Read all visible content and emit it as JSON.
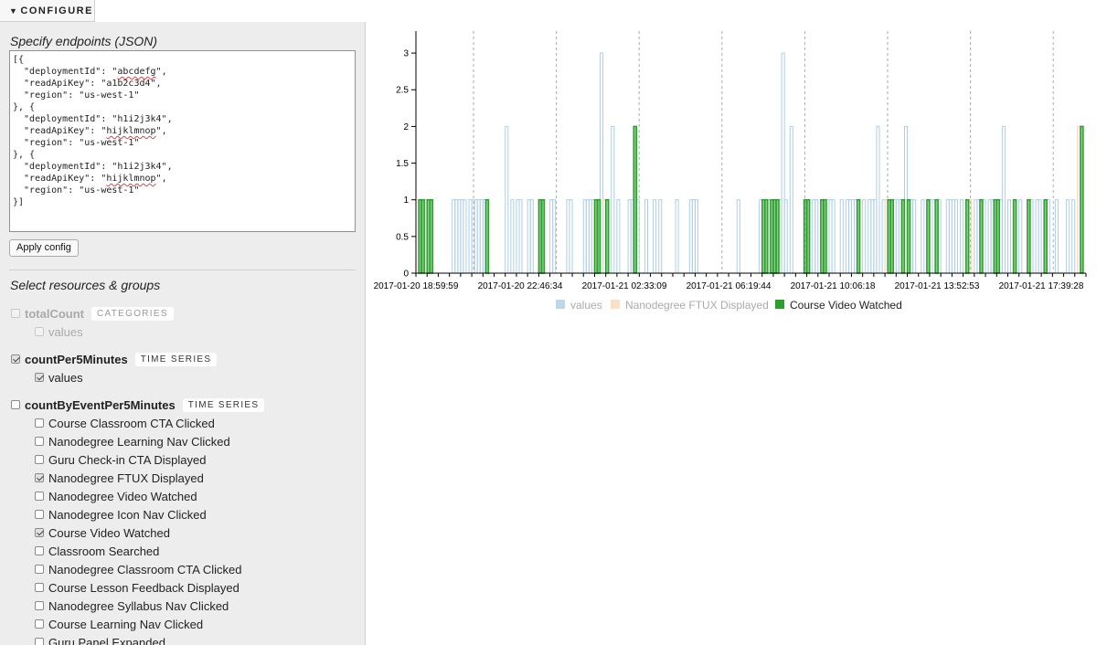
{
  "configure_tab": {
    "label": "CONFIGURE"
  },
  "endpoints": {
    "title": "Specify endpoints (JSON)",
    "lines": [
      [
        [
          "[{"
        ]
      ],
      [
        [
          "  \"deploymentId\": \""
        ],
        [
          "abcdefg",
          "sq"
        ],
        [
          "\","
        ]
      ],
      [
        [
          "  \"readApiKey\": \"a1b2c3d4\","
        ]
      ],
      [
        [
          "  \"region\": \"us-west-1\""
        ]
      ],
      [
        [
          "}, {"
        ]
      ],
      [
        [
          "  \"deploymentId\": \"h1i2j3k4\","
        ]
      ],
      [
        [
          "  \"readApiKey\": \""
        ],
        [
          "hijklmnop",
          "sq"
        ],
        [
          "\","
        ]
      ],
      [
        [
          "  \"region\": \"us-west-1\""
        ]
      ],
      [
        [
          "}, {"
        ]
      ],
      [
        [
          "  \"deploymentId\": \"h1i2j3k4\","
        ]
      ],
      [
        [
          "  \"readApiKey\": \""
        ],
        [
          "hijklmnop",
          "sq"
        ],
        [
          "\","
        ]
      ],
      [
        [
          "  \"region\": \"us-west-1\""
        ]
      ],
      [
        [
          "}]"
        ]
      ]
    ],
    "apply_label": "Apply config"
  },
  "resources": {
    "title": "Select resources & groups",
    "groups": [
      {
        "label": "totalCount",
        "badge": "CATEGORIES",
        "checked": false,
        "disabled": true,
        "items": [
          {
            "label": "values",
            "checked": false,
            "disabled": true
          }
        ]
      },
      {
        "label": "countPer5Minutes",
        "badge": "TIME SERIES",
        "checked": true,
        "disabled": false,
        "items": [
          {
            "label": "values",
            "checked": true,
            "disabled": false
          }
        ]
      },
      {
        "label": "countByEventPer5Minutes",
        "badge": "TIME SERIES",
        "checked": false,
        "disabled": false,
        "items": [
          {
            "label": "Course Classroom CTA Clicked",
            "checked": false
          },
          {
            "label": "Nanodegree Learning Nav Clicked",
            "checked": false
          },
          {
            "label": "Guru Check-in CTA Displayed",
            "checked": false
          },
          {
            "label": "Nanodegree FTUX Displayed",
            "checked": true
          },
          {
            "label": "Nanodegree Video Watched",
            "checked": false
          },
          {
            "label": "Nanodegree Icon Nav Clicked",
            "checked": false
          },
          {
            "label": "Course Video Watched",
            "checked": true
          },
          {
            "label": "Classroom Searched",
            "checked": false
          },
          {
            "label": "Nanodegree Classroom CTA Clicked",
            "checked": false
          },
          {
            "label": "Course Lesson Feedback Displayed",
            "checked": false
          },
          {
            "label": "Nanodegree Syllabus Nav Clicked",
            "checked": false
          },
          {
            "label": "Course Learning Nav Clicked",
            "checked": false
          },
          {
            "label": "Guru Panel Expanded",
            "checked": false
          }
        ]
      }
    ]
  },
  "chart_data": {
    "type": "bar",
    "x_tick_labels": [
      "2017-01-20 18:59:59",
      "2017-01-20 22:46:34",
      "2017-01-21 02:33:09",
      "2017-01-21 06:19:44",
      "2017-01-21 10:06:18",
      "2017-01-21 13:52:53",
      "2017-01-21 17:39:28"
    ],
    "y_ticks": [
      "0",
      "0.5",
      "1",
      "1.5",
      "2",
      "2.5",
      "3"
    ],
    "ylim": [
      0,
      3.3
    ],
    "legend": {
      "placement": "bottom"
    },
    "bins_total": 240,
    "bar_notes": "Each series is given as bins of the 5-minute timeline (index into 240 bins) with count values.",
    "series": [
      {
        "name": "values",
        "color": "#aecde6",
        "enabled": false,
        "points": [
          [
            2,
            1
          ],
          [
            3,
            1
          ],
          [
            4,
            1
          ],
          [
            13,
            1
          ],
          [
            14,
            1
          ],
          [
            15,
            1
          ],
          [
            16,
            1
          ],
          [
            17,
            1
          ],
          [
            19,
            1
          ],
          [
            20,
            1
          ],
          [
            21,
            1
          ],
          [
            22,
            1
          ],
          [
            23,
            1
          ],
          [
            24,
            1
          ],
          [
            32,
            2
          ],
          [
            34,
            1
          ],
          [
            36,
            1
          ],
          [
            37,
            1
          ],
          [
            40,
            1
          ],
          [
            41,
            1
          ],
          [
            48,
            1
          ],
          [
            49,
            1
          ],
          [
            54,
            1
          ],
          [
            55,
            1
          ],
          [
            60,
            1
          ],
          [
            61,
            1
          ],
          [
            62,
            1
          ],
          [
            63,
            1
          ],
          [
            66,
            3
          ],
          [
            67,
            1
          ],
          [
            68,
            1
          ],
          [
            70,
            2
          ],
          [
            72,
            1
          ],
          [
            76,
            1
          ],
          [
            77,
            1
          ],
          [
            79,
            1
          ],
          [
            82,
            1
          ],
          [
            85,
            1
          ],
          [
            87,
            1
          ],
          [
            93,
            1
          ],
          [
            98,
            1
          ],
          [
            99,
            1
          ],
          [
            100,
            1
          ],
          [
            115,
            1
          ],
          [
            123,
            1
          ],
          [
            124,
            1
          ],
          [
            125,
            1
          ],
          [
            126,
            1
          ],
          [
            127,
            1
          ],
          [
            129,
            1
          ],
          [
            130,
            1
          ],
          [
            131,
            3
          ],
          [
            132,
            1
          ],
          [
            134,
            2
          ],
          [
            140,
            1
          ],
          [
            142,
            1
          ],
          [
            143,
            1
          ],
          [
            147,
            1
          ],
          [
            148,
            1
          ],
          [
            149,
            1
          ],
          [
            152,
            1
          ],
          [
            154,
            1
          ],
          [
            155,
            1
          ],
          [
            156,
            1
          ],
          [
            157,
            1
          ],
          [
            160,
            1
          ],
          [
            162,
            1
          ],
          [
            163,
            1
          ],
          [
            164,
            1
          ],
          [
            165,
            2
          ],
          [
            167,
            1
          ],
          [
            169,
            1
          ],
          [
            171,
            1
          ],
          [
            172,
            1
          ],
          [
            173,
            1
          ],
          [
            175,
            2
          ],
          [
            177,
            1
          ],
          [
            178,
            1
          ],
          [
            181,
            1
          ],
          [
            183,
            1
          ],
          [
            184,
            1
          ],
          [
            185,
            1
          ],
          [
            186,
            1
          ],
          [
            187,
            1
          ],
          [
            190,
            1
          ],
          [
            191,
            1
          ],
          [
            192,
            1
          ],
          [
            193,
            1
          ],
          [
            195,
            1
          ],
          [
            198,
            1
          ],
          [
            200,
            1
          ],
          [
            201,
            1
          ],
          [
            202,
            1
          ],
          [
            203,
            1
          ],
          [
            205,
            1
          ],
          [
            206,
            1
          ],
          [
            207,
            1
          ],
          [
            209,
            1
          ],
          [
            210,
            2
          ],
          [
            212,
            1
          ],
          [
            216,
            1
          ],
          [
            220,
            1
          ],
          [
            222,
            1
          ],
          [
            223,
            1
          ],
          [
            226,
            1
          ],
          [
            229,
            1
          ],
          [
            233,
            1
          ],
          [
            235,
            1
          ],
          [
            237,
            2
          ]
        ]
      },
      {
        "name": "Nanodegree FTUX Displayed",
        "color": "#fbd8b8",
        "enabled": false,
        "points": [
          [
            25,
            1
          ],
          [
            67,
            1
          ],
          [
            125,
            1
          ],
          [
            168,
            1
          ],
          [
            198,
            1
          ],
          [
            237,
            2
          ]
        ]
      },
      {
        "name": "Course Video Watched",
        "color": "#2ca02c",
        "enabled": true,
        "points": [
          [
            1,
            1
          ],
          [
            2,
            1
          ],
          [
            4,
            1
          ],
          [
            5,
            1
          ],
          [
            25,
            1
          ],
          [
            44,
            1
          ],
          [
            45,
            1
          ],
          [
            64,
            1
          ],
          [
            65,
            1
          ],
          [
            68,
            1
          ],
          [
            78,
            2
          ],
          [
            124,
            1
          ],
          [
            125,
            1
          ],
          [
            127,
            1
          ],
          [
            128,
            1
          ],
          [
            129,
            1
          ],
          [
            139,
            1
          ],
          [
            140,
            1
          ],
          [
            145,
            1
          ],
          [
            146,
            1
          ],
          [
            158,
            1
          ],
          [
            169,
            1
          ],
          [
            170,
            1
          ],
          [
            174,
            1
          ],
          [
            176,
            1
          ],
          [
            183,
            1
          ],
          [
            186,
            1
          ],
          [
            197,
            1
          ],
          [
            202,
            1
          ],
          [
            207,
            1
          ],
          [
            208,
            1
          ],
          [
            214,
            1
          ],
          [
            219,
            1
          ],
          [
            225,
            1
          ],
          [
            238,
            2
          ]
        ]
      }
    ]
  }
}
